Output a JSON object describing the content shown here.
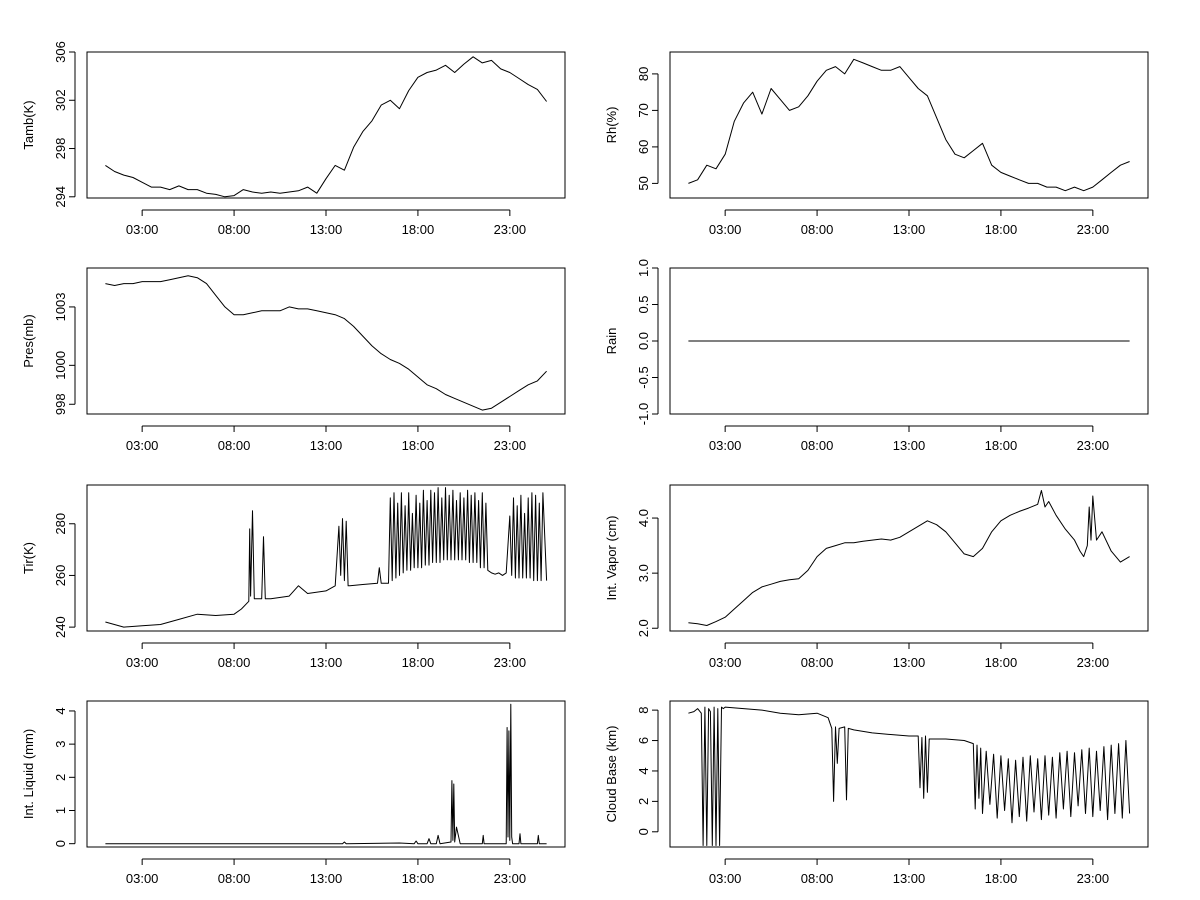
{
  "chart_data": [
    {
      "type": "line",
      "ylabel": "Tamb(K)",
      "x_ticks": [
        "03:00",
        "08:00",
        "13:00",
        "18:00",
        "23:00"
      ],
      "y_ticks": [
        "294",
        "298",
        "302",
        "306"
      ],
      "ylim": [
        293.9,
        306
      ],
      "x": [
        0.0,
        0.5,
        1.0,
        1.5,
        2.0,
        2.5,
        3.0,
        3.5,
        4.0,
        4.5,
        5.0,
        5.5,
        6.0,
        6.5,
        7.0,
        7.5,
        8.0,
        8.5,
        9.0,
        9.5,
        10.0,
        10.5,
        11.0,
        11.5,
        12.0,
        12.5,
        13.0,
        13.5,
        14.0,
        14.5,
        15.0,
        15.5,
        16.0,
        16.5,
        17.0,
        17.5,
        18.0,
        18.5,
        19.0,
        19.5,
        20.0,
        20.5,
        21.0,
        21.5,
        22.0,
        22.5,
        23.0,
        23.5,
        24.0
      ],
      "values": [
        296.6,
        296.1,
        295.8,
        295.6,
        295.2,
        294.8,
        294.8,
        294.6,
        294.9,
        294.6,
        294.6,
        294.3,
        294.2,
        294.0,
        294.1,
        294.6,
        294.4,
        294.3,
        294.4,
        294.3,
        294.4,
        294.5,
        294.8,
        294.3,
        295.5,
        296.6,
        296.2,
        298.1,
        299.4,
        300.3,
        301.6,
        302.0,
        301.3,
        302.8,
        303.9,
        304.3,
        304.5,
        304.9,
        304.3,
        305.0,
        305.6,
        305.1,
        305.3,
        304.6,
        304.3,
        303.8,
        303.3,
        302.9,
        301.9
      ]
    },
    {
      "type": "line",
      "ylabel": "Rh(%)",
      "x_ticks": [
        "03:00",
        "08:00",
        "13:00",
        "18:00",
        "23:00"
      ],
      "y_ticks": [
        "50",
        "60",
        "70",
        "80"
      ],
      "ylim": [
        46,
        86
      ],
      "x": [
        0.0,
        0.5,
        1.0,
        1.5,
        2.0,
        2.5,
        3.0,
        3.5,
        4.0,
        4.5,
        5.0,
        5.5,
        6.0,
        6.5,
        7.0,
        7.5,
        8.0,
        8.5,
        9.0,
        9.5,
        10.0,
        10.5,
        11.0,
        11.5,
        12.0,
        12.5,
        13.0,
        13.5,
        14.0,
        14.5,
        15.0,
        15.5,
        16.0,
        16.5,
        17.0,
        17.5,
        18.0,
        18.5,
        19.0,
        19.5,
        20.0,
        20.5,
        21.0,
        21.5,
        22.0,
        22.5,
        23.0,
        23.5,
        24.0
      ],
      "values": [
        50,
        51,
        55,
        54,
        58,
        67,
        72,
        75,
        69,
        76,
        73,
        70,
        71,
        74,
        78,
        81,
        82,
        80,
        84,
        83,
        82,
        81,
        81,
        82,
        79,
        76,
        74,
        68,
        62,
        58,
        57,
        59,
        61,
        55,
        53,
        52,
        51,
        50,
        50,
        49,
        49,
        48,
        49,
        48,
        49,
        51,
        53,
        55,
        56
      ]
    },
    {
      "type": "line",
      "ylabel": "Pres(mb)",
      "x_ticks": [
        "03:00",
        "08:00",
        "13:00",
        "18:00",
        "23:00"
      ],
      "y_ticks": [
        "998",
        "1000",
        "1003"
      ],
      "ylim": [
        997.5,
        1005
      ],
      "x": [
        0.0,
        0.5,
        1.0,
        1.5,
        2.0,
        2.5,
        3.0,
        3.5,
        4.0,
        4.5,
        5.0,
        5.5,
        6.0,
        6.5,
        7.0,
        7.5,
        8.0,
        8.5,
        9.0,
        9.5,
        10.0,
        10.5,
        11.0,
        11.5,
        12.0,
        12.5,
        13.0,
        13.5,
        14.0,
        14.5,
        15.0,
        15.5,
        16.0,
        16.5,
        17.0,
        17.5,
        18.0,
        18.5,
        19.0,
        19.5,
        20.0,
        20.5,
        21.0,
        21.5,
        22.0,
        22.5,
        23.0,
        23.5,
        24.0
      ],
      "values": [
        1004.2,
        1004.1,
        1004.2,
        1004.2,
        1004.3,
        1004.3,
        1004.3,
        1004.4,
        1004.5,
        1004.6,
        1004.5,
        1004.2,
        1003.6,
        1003.0,
        1002.6,
        1002.6,
        1002.7,
        1002.8,
        1002.8,
        1002.8,
        1003.0,
        1002.9,
        1002.9,
        1002.8,
        1002.7,
        1002.6,
        1002.4,
        1002.0,
        1001.5,
        1001.0,
        1000.6,
        1000.3,
        1000.1,
        999.8,
        999.4,
        999.0,
        998.8,
        998.5,
        998.3,
        998.1,
        997.9,
        997.7,
        997.8,
        998.1,
        998.4,
        998.7,
        999.0,
        999.2,
        999.7
      ]
    },
    {
      "type": "line",
      "ylabel": "Rain",
      "x_ticks": [
        "03:00",
        "08:00",
        "13:00",
        "18:00",
        "23:00"
      ],
      "y_ticks": [
        "-1.0",
        "-0.5",
        "0.0",
        "0.5",
        "1.0"
      ],
      "ylim": [
        -1.0,
        1.0
      ],
      "x": [
        0,
        24
      ],
      "values": [
        0.0,
        0.0
      ]
    },
    {
      "type": "line",
      "ylabel": "Tir(K)",
      "x_ticks": [
        "03:00",
        "08:00",
        "13:00",
        "18:00",
        "23:00"
      ],
      "y_ticks": [
        "240",
        "260",
        "280"
      ],
      "ylim": [
        238.5,
        295
      ],
      "x": [
        0.0,
        1.0,
        2.0,
        3.0,
        4.0,
        5.0,
        6.0,
        7.0,
        7.4,
        7.8,
        7.85,
        7.9,
        8.0,
        8.1,
        8.2,
        8.5,
        8.6,
        8.7,
        9.0,
        10.0,
        10.5,
        11.0,
        12.0,
        12.5,
        12.7,
        12.8,
        12.9,
        13.0,
        13.1,
        13.2,
        13.3,
        14.0,
        14.8,
        14.9,
        15.0,
        15.4,
        15.5,
        15.6,
        15.7,
        15.8,
        15.9,
        16.0,
        16.1,
        16.2,
        16.3,
        16.4,
        16.5,
        16.6,
        16.7,
        16.8,
        16.9,
        17.0,
        17.1,
        17.2,
        17.3,
        17.4,
        17.5,
        17.6,
        17.7,
        17.8,
        17.9,
        18.0,
        18.1,
        18.2,
        18.3,
        18.4,
        18.5,
        18.6,
        18.7,
        18.8,
        18.9,
        19.0,
        19.1,
        19.2,
        19.3,
        19.4,
        19.5,
        19.6,
        19.7,
        19.8,
        19.9,
        20.0,
        20.1,
        20.2,
        20.3,
        20.4,
        20.5,
        20.6,
        20.7,
        20.8,
        21.0,
        21.2,
        21.4,
        21.6,
        21.8,
        22.0,
        22.1,
        22.2,
        22.3,
        22.4,
        22.5,
        22.6,
        22.7,
        22.8,
        22.9,
        23.0,
        23.1,
        23.2,
        23.3,
        23.4,
        23.5,
        23.6,
        23.7,
        23.8,
        24.0
      ],
      "values": [
        242,
        240,
        240.5,
        241,
        243,
        245,
        244.5,
        245,
        247,
        250,
        278,
        252,
        285,
        251,
        251,
        251,
        275,
        251,
        251,
        252,
        256,
        253,
        254,
        256,
        279,
        260,
        282,
        258,
        281,
        256,
        256,
        256.5,
        257,
        263,
        257,
        257,
        290,
        258,
        292,
        259,
        288,
        260,
        292,
        261,
        287,
        262,
        292,
        262,
        284,
        263,
        291,
        263,
        288,
        263,
        293,
        264,
        289,
        264,
        293,
        265,
        292,
        265,
        294,
        265,
        290,
        266,
        294,
        266,
        291,
        266,
        293,
        266,
        289,
        266,
        292,
        266,
        290,
        266,
        293,
        265,
        291,
        265,
        292,
        265,
        289,
        263,
        292,
        263,
        288,
        262,
        261,
        260.5,
        261,
        260,
        261,
        283,
        260,
        290,
        259,
        287,
        259,
        291,
        259,
        284,
        259,
        290,
        259,
        292,
        258,
        291,
        258,
        288,
        258,
        292,
        258
      ]
    },
    {
      "type": "line",
      "ylabel": "Int. Vapor (cm)",
      "x_ticks": [
        "03:00",
        "08:00",
        "13:00",
        "18:00",
        "23:00"
      ],
      "y_ticks": [
        "2.0",
        "3.0",
        "4.0"
      ],
      "ylim": [
        1.95,
        4.6
      ],
      "x": [
        0.0,
        0.5,
        1.0,
        1.5,
        2.0,
        2.5,
        3.0,
        3.5,
        4.0,
        4.5,
        5.0,
        5.5,
        6.0,
        6.5,
        7.0,
        7.5,
        8.0,
        8.5,
        9.0,
        9.5,
        10.0,
        10.5,
        11.0,
        11.5,
        12.0,
        12.5,
        13.0,
        13.5,
        14.0,
        14.5,
        15.0,
        15.5,
        16.0,
        16.5,
        17.0,
        17.5,
        18.0,
        18.5,
        19.0,
        19.2,
        19.4,
        19.6,
        20.0,
        20.5,
        21.0,
        21.3,
        21.5,
        21.7,
        21.8,
        21.9,
        22.0,
        22.2,
        22.5,
        23.0,
        23.5,
        24.0
      ],
      "values": [
        2.1,
        2.08,
        2.05,
        2.12,
        2.2,
        2.35,
        2.5,
        2.65,
        2.75,
        2.8,
        2.85,
        2.88,
        2.9,
        3.05,
        3.3,
        3.45,
        3.5,
        3.55,
        3.55,
        3.58,
        3.6,
        3.62,
        3.6,
        3.65,
        3.75,
        3.85,
        3.95,
        3.88,
        3.75,
        3.55,
        3.35,
        3.3,
        3.45,
        3.75,
        3.95,
        4.05,
        4.12,
        4.18,
        4.25,
        4.5,
        4.2,
        4.3,
        4.05,
        3.8,
        3.6,
        3.4,
        3.3,
        3.5,
        4.2,
        3.6,
        4.4,
        3.6,
        3.75,
        3.4,
        3.2,
        3.3
      ]
    },
    {
      "type": "line",
      "ylabel": "Int. Liquid (mm)",
      "x_ticks": [
        "03:00",
        "08:00",
        "13:00",
        "18:00",
        "23:00"
      ],
      "y_ticks": [
        "0",
        "1",
        "2",
        "3",
        "4"
      ],
      "ylim": [
        -0.1,
        4.3
      ],
      "x": [
        0.0,
        12.9,
        13.0,
        13.1,
        16.0,
        16.8,
        16.9,
        17.0,
        17.5,
        17.6,
        17.7,
        18.0,
        18.1,
        18.2,
        18.8,
        18.85,
        18.9,
        18.95,
        19.0,
        19.1,
        19.3,
        20.5,
        20.55,
        20.6,
        21.0,
        21.5,
        21.8,
        21.85,
        21.9,
        21.95,
        22.0,
        22.05,
        22.1,
        22.15,
        22.5,
        22.55,
        22.6,
        23.0,
        23.5,
        23.55,
        23.6,
        24.0
      ],
      "values": [
        0.0,
        0.0,
        0.05,
        0.0,
        0.02,
        0.0,
        0.08,
        0.0,
        0.0,
        0.15,
        0.0,
        0.0,
        0.25,
        0.0,
        0.05,
        1.9,
        0.1,
        1.8,
        0.05,
        0.5,
        0.0,
        0.0,
        0.25,
        0.0,
        0.0,
        0.0,
        0.0,
        3.5,
        0.2,
        3.4,
        0.1,
        4.2,
        0.2,
        0.0,
        0.0,
        0.3,
        0.0,
        0.0,
        0.0,
        0.25,
        0.0,
        0.0
      ]
    },
    {
      "type": "line",
      "ylabel": "Cloud Base (km)",
      "x_ticks": [
        "03:00",
        "08:00",
        "13:00",
        "18:00",
        "23:00"
      ],
      "y_ticks": [
        "0",
        "2",
        "4",
        "6",
        "8"
      ],
      "ylim": [
        -1.0,
        8.6
      ],
      "x": [
        0.0,
        0.3,
        0.5,
        0.7,
        0.8,
        0.9,
        1.0,
        1.1,
        1.2,
        1.3,
        1.4,
        1.5,
        1.6,
        1.7,
        1.8,
        1.9,
        2.0,
        3.0,
        4.0,
        5.0,
        6.0,
        7.0,
        7.6,
        7.8,
        7.9,
        8.0,
        8.1,
        8.2,
        8.5,
        8.6,
        8.7,
        9.0,
        10.0,
        11.0,
        12.0,
        12.5,
        12.6,
        12.7,
        12.8,
        12.9,
        13.0,
        13.1,
        14.0,
        15.0,
        15.5,
        15.6,
        15.7,
        15.8,
        15.9,
        16.0,
        16.2,
        16.4,
        16.6,
        16.8,
        17.0,
        17.2,
        17.4,
        17.6,
        17.8,
        18.0,
        18.2,
        18.4,
        18.6,
        18.8,
        19.0,
        19.2,
        19.4,
        19.6,
        19.8,
        20.0,
        20.2,
        20.4,
        20.6,
        20.8,
        21.0,
        21.2,
        21.4,
        21.6,
        21.8,
        22.0,
        22.2,
        22.4,
        22.6,
        22.8,
        23.0,
        23.2,
        23.4,
        23.6,
        23.8,
        24.0
      ],
      "values": [
        7.8,
        7.9,
        8.1,
        7.8,
        -0.9,
        8.2,
        -0.9,
        8.1,
        7.9,
        -0.9,
        8.2,
        -0.9,
        8.1,
        -0.9,
        8.2,
        8.1,
        8.2,
        8.1,
        8.0,
        7.8,
        7.7,
        7.8,
        7.5,
        6.8,
        2.0,
        6.9,
        4.5,
        6.8,
        6.9,
        2.1,
        6.8,
        6.7,
        6.5,
        6.4,
        6.3,
        6.3,
        2.9,
        6.2,
        2.2,
        6.3,
        2.6,
        6.1,
        6.1,
        6.0,
        5.8,
        1.5,
        5.7,
        2.2,
        5.5,
        1.2,
        5.3,
        1.8,
        5.1,
        0.9,
        5.0,
        1.4,
        4.8,
        0.6,
        4.7,
        1.0,
        4.9,
        0.7,
        5.0,
        1.3,
        4.8,
        0.8,
        5.0,
        1.1,
        4.9,
        0.9,
        5.2,
        1.5,
        5.3,
        1.0,
        5.2,
        1.7,
        5.4,
        1.2,
        5.5,
        1.0,
        5.3,
        1.4,
        5.6,
        0.8,
        5.7,
        1.2,
        5.8,
        0.9,
        6.0,
        1.2
      ]
    }
  ]
}
